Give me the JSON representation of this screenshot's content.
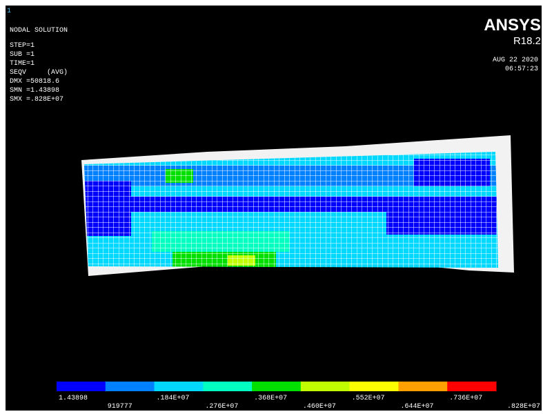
{
  "window_number": "1",
  "header": {
    "title": "NODAL SOLUTION",
    "step": "STEP=1",
    "sub": "SUB =1",
    "time": "TIME=1",
    "result": "SEQV     (AVG)",
    "dmx": "DMX =50818.6",
    "smn": "SMN =1.43898",
    "smx": "SMX =.828E+07"
  },
  "brand": {
    "name": "ANSYS",
    "version": "R18.2",
    "date": "AUG 22 2020",
    "clock": "06:57:23"
  },
  "legend": {
    "colors": [
      "#0000ff",
      "#0080ff",
      "#00d8ff",
      "#00ffc0",
      "#00e000",
      "#c0ff00",
      "#ffff00",
      "#ffa000",
      "#ff0000"
    ],
    "labels": [
      "1.43898",
      "919777",
      ".184E+07",
      ".276E+07",
      ".368E+07",
      ".460E+07",
      ".552E+07",
      ".644E+07",
      ".736E+07",
      ".828E+07"
    ]
  }
}
